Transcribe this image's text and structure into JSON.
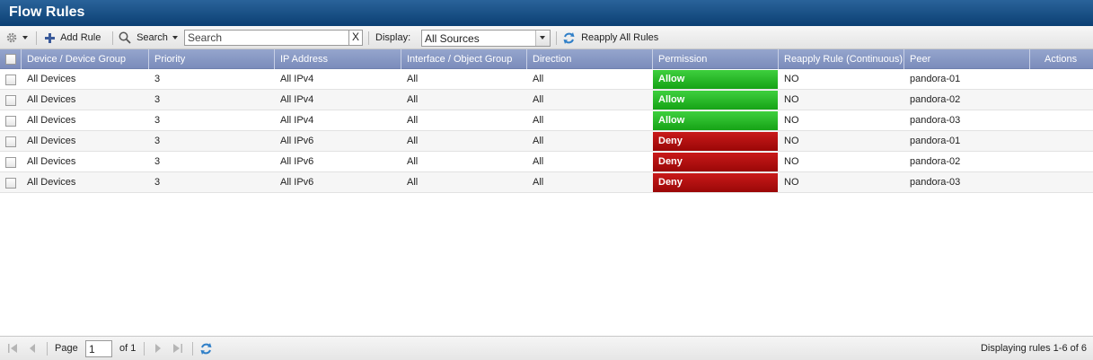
{
  "window": {
    "title": "Flow Rules"
  },
  "toolbar": {
    "settings_icon": "gear-icon",
    "add_rule_label": "Add Rule",
    "search_label": "Search",
    "search_placeholder": "Search",
    "search_value": "",
    "clear_label": "X",
    "display_label": "Display:",
    "display_value": "All Sources",
    "reapply_label": "Reapply All Rules"
  },
  "table": {
    "columns": [
      "Device / Device Group",
      "Priority",
      "IP Address",
      "Interface / Object Group",
      "Direction",
      "Permission",
      "Reapply Rule (Continuous)",
      "Peer",
      "Actions"
    ],
    "rows": [
      {
        "device": "All Devices",
        "priority": "3",
        "ip": "All IPv4",
        "interface": "All",
        "direction": "All",
        "permission": "Allow",
        "reapply": "NO",
        "peer": "pandora-01"
      },
      {
        "device": "All Devices",
        "priority": "3",
        "ip": "All IPv4",
        "interface": "All",
        "direction": "All",
        "permission": "Allow",
        "reapply": "NO",
        "peer": "pandora-02"
      },
      {
        "device": "All Devices",
        "priority": "3",
        "ip": "All IPv4",
        "interface": "All",
        "direction": "All",
        "permission": "Allow",
        "reapply": "NO",
        "peer": "pandora-03"
      },
      {
        "device": "All Devices",
        "priority": "3",
        "ip": "All IPv6",
        "interface": "All",
        "direction": "All",
        "permission": "Deny",
        "reapply": "NO",
        "peer": "pandora-01"
      },
      {
        "device": "All Devices",
        "priority": "3",
        "ip": "All IPv6",
        "interface": "All",
        "direction": "All",
        "permission": "Deny",
        "reapply": "NO",
        "peer": "pandora-02"
      },
      {
        "device": "All Devices",
        "priority": "3",
        "ip": "All IPv6",
        "interface": "All",
        "direction": "All",
        "permission": "Deny",
        "reapply": "NO",
        "peer": "pandora-03"
      }
    ]
  },
  "pagination": {
    "page_label": "Page",
    "page_value": "1",
    "of_label": "of 1",
    "status": "Displaying rules 1-6 of 6"
  },
  "colors": {
    "allow": "#22b022",
    "deny": "#b00f0f",
    "header": "#8a9ac6",
    "title": "#0b3f73"
  }
}
